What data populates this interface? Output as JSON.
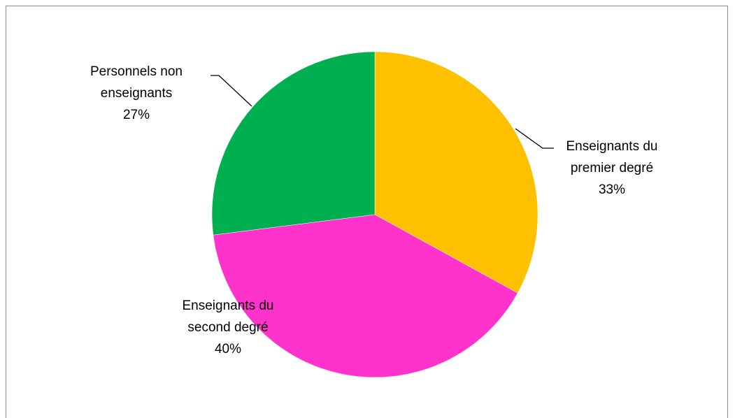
{
  "chart_data": {
    "type": "pie",
    "title": "",
    "start_angle_deg": 0,
    "direction": "clockwise",
    "legend": "none",
    "slices": [
      {
        "label_lines": [
          "Enseignants du",
          "premier degré"
        ],
        "value": 33,
        "value_label": "33%",
        "color": "#FFC000"
      },
      {
        "label_lines": [
          "Enseignants du",
          "second degré"
        ],
        "value": 40,
        "value_label": "40%",
        "color": "#FF33CC"
      },
      {
        "label_lines": [
          "Personnels non",
          "enseignants"
        ],
        "value": 27,
        "value_label": "27%",
        "color": "#00B050"
      }
    ]
  }
}
